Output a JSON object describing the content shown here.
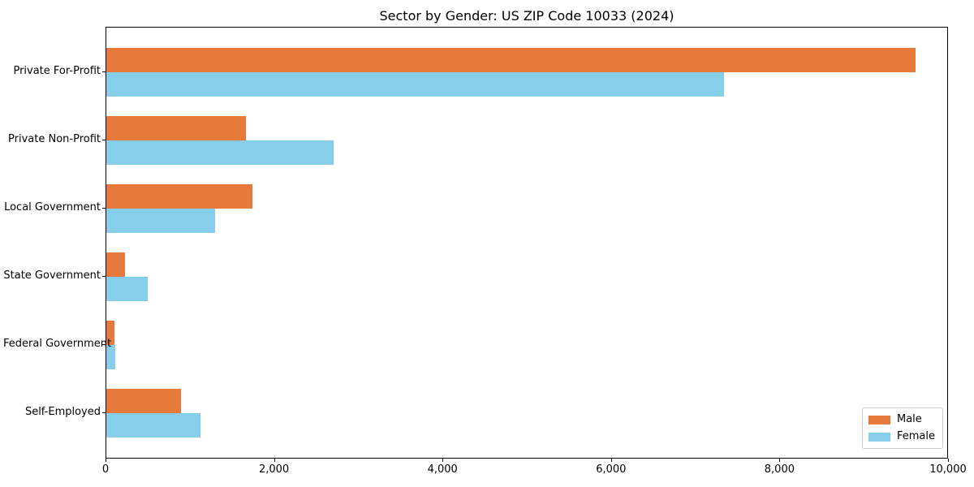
{
  "chart_data": {
    "type": "bar",
    "orientation": "horizontal",
    "title": "Sector by Gender: US ZIP Code 10033 (2024)",
    "categories": [
      "Private For-Profit",
      "Private Non-Profit",
      "Local Government",
      "State Government",
      "Federal Government",
      "Self-Employed"
    ],
    "series": [
      {
        "name": "Male",
        "color": "#E8793D",
        "values": [
          9600,
          1660,
          1730,
          220,
          95,
          890
        ]
      },
      {
        "name": "Female",
        "color": "#87CEEB",
        "values": [
          7330,
          2700,
          1290,
          490,
          110,
          1120
        ]
      }
    ],
    "xlabel": "",
    "ylabel": "",
    "xlim": [
      0,
      10000
    ],
    "x_ticks": [
      0,
      2000,
      4000,
      6000,
      8000,
      10000
    ],
    "x_tick_labels": [
      "0",
      "2,000",
      "4,000",
      "6,000",
      "8,000",
      "10,000"
    ],
    "grid": false,
    "legend_position": "lower right",
    "frame": "full-box",
    "background_color": "#ffffff",
    "spine_color": "#000000",
    "legend_border_color": "#cccccc"
  }
}
